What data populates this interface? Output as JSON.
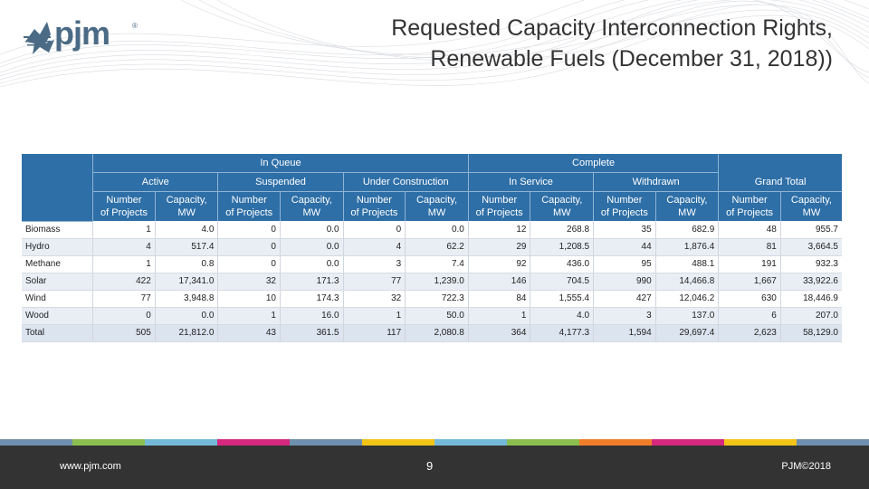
{
  "logo": {
    "text": "pjm",
    "reg": "®"
  },
  "title": {
    "line1": "Requested Capacity Interconnection Rights,",
    "line2": "Renewable Fuels (December 31, 2018))"
  },
  "table": {
    "group_headers": [
      "In Queue",
      "Complete"
    ],
    "sub_headers": [
      "Active",
      "Suspended",
      "Under Construction",
      "In Service",
      "Withdrawn",
      "Grand Total"
    ],
    "col_headers": [
      [
        "Number",
        "of Projects"
      ],
      [
        "Capacity,",
        "MW"
      ],
      [
        "Number",
        "of Projects"
      ],
      [
        "Capacity,",
        "MW"
      ],
      [
        "Number",
        "of Projects"
      ],
      [
        "Capacity,",
        "MW"
      ],
      [
        "Number",
        "of Projects"
      ],
      [
        "Capacity,",
        "MW"
      ],
      [
        "Number",
        "of Projects"
      ],
      [
        "Capacity,",
        "MW"
      ],
      [
        "Number",
        "of Projects"
      ],
      [
        "Capacity,",
        "MW"
      ]
    ],
    "rows": [
      {
        "label": "Biomass",
        "values": [
          "1",
          "4.0",
          "0",
          "0.0",
          "0",
          "0.0",
          "12",
          "268.8",
          "35",
          "682.9",
          "48",
          "955.7"
        ]
      },
      {
        "label": "Hydro",
        "values": [
          "4",
          "517.4",
          "0",
          "0.0",
          "4",
          "62.2",
          "29",
          "1,208.5",
          "44",
          "1,876.4",
          "81",
          "3,664.5"
        ]
      },
      {
        "label": "Methane",
        "values": [
          "1",
          "0.8",
          "0",
          "0.0",
          "3",
          "7.4",
          "92",
          "436.0",
          "95",
          "488.1",
          "191",
          "932.3"
        ]
      },
      {
        "label": "Solar",
        "values": [
          "422",
          "17,341.0",
          "32",
          "171.3",
          "77",
          "1,239.0",
          "146",
          "704.5",
          "990",
          "14,466.8",
          "1,667",
          "33,922.6"
        ]
      },
      {
        "label": "Wind",
        "values": [
          "77",
          "3,948.8",
          "10",
          "174.3",
          "32",
          "722.3",
          "84",
          "1,555.4",
          "427",
          "12,046.2",
          "630",
          "18,446.9"
        ]
      },
      {
        "label": "Wood",
        "values": [
          "0",
          "0.0",
          "1",
          "16.0",
          "1",
          "50.0",
          "1",
          "4.0",
          "3",
          "137.0",
          "6",
          "207.0"
        ]
      }
    ],
    "total": {
      "label": "Total",
      "values": [
        "505",
        "21,812.0",
        "43",
        "361.5",
        "117",
        "2,080.8",
        "364",
        "4,177.3",
        "1,594",
        "29,697.4",
        "2,623",
        "58,129.0"
      ]
    }
  },
  "footer": {
    "url": "www.pjm.com",
    "page": "9",
    "copyright": "PJM©2018"
  },
  "colors": {
    "header_blue": "#2e6fa7",
    "footer_dark": "#333333",
    "logo_blue": "#4a6a86",
    "strip": [
      "#6e8fae",
      "#8bbd4f",
      "#74b9d8",
      "#d6287e",
      "#6e8fae",
      "#f2c319",
      "#74b9d8",
      "#8bbd4f",
      "#f07d2a",
      "#d6287e",
      "#f2c319",
      "#6e8fae"
    ]
  }
}
